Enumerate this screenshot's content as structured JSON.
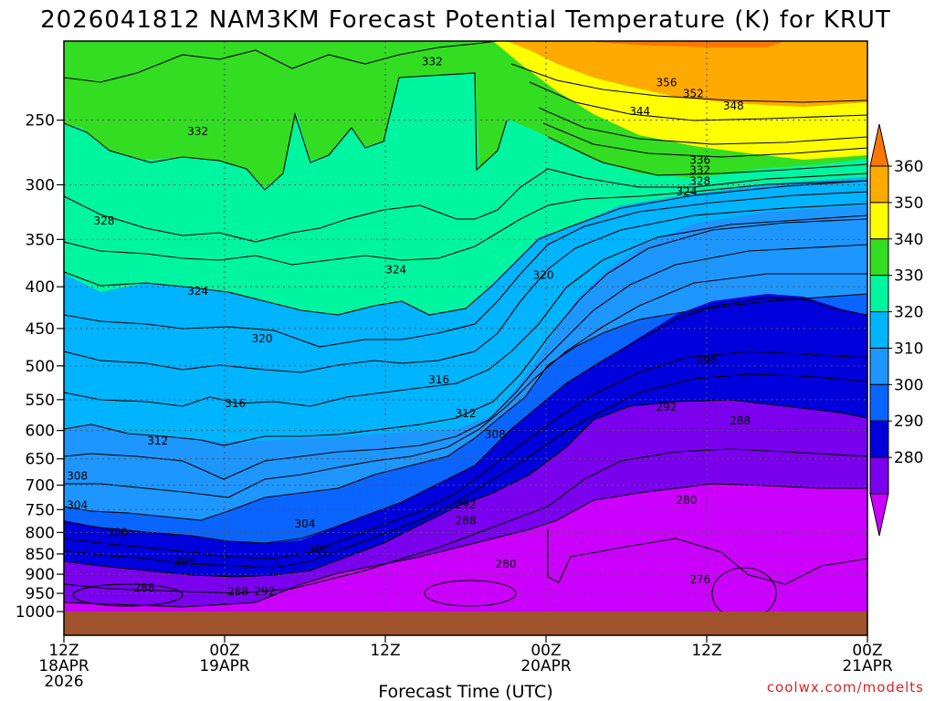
{
  "chart_data": {
    "type": "contour",
    "title": "2026041812 NAM3KM Forecast Potential Temperature (K) for KRUT",
    "xlabel": "Forecast Time (UTC)",
    "ylabel": "",
    "credit": "coolwx.com/modelts",
    "y_log_scale": true,
    "ylim": [
      1000,
      200
    ],
    "xlim": [
      0,
      60
    ],
    "grid": true,
    "colorbar": {
      "orientation": "vertical",
      "placement": "right",
      "levels": [
        280,
        290,
        300,
        310,
        320,
        330,
        340,
        350,
        360
      ],
      "labels": [
        "360",
        "350",
        "340",
        "330",
        "320",
        "310",
        "300",
        "290",
        "280"
      ],
      "colors": [
        "#cc00ff",
        "#7a00ee",
        "#0000dd",
        "#0a64ff",
        "#1e96ff",
        "#00b4ff",
        "#00f5a0",
        "#33dd22",
        "#ffff00",
        "#ffaa00",
        "#ff7700"
      ]
    },
    "y_ticks": [
      {
        "p": 250,
        "label": "250"
      },
      {
        "p": 300,
        "label": "300"
      },
      {
        "p": 350,
        "label": "350"
      },
      {
        "p": 400,
        "label": "400"
      },
      {
        "p": 450,
        "label": "450"
      },
      {
        "p": 500,
        "label": "500"
      },
      {
        "p": 550,
        "label": "550"
      },
      {
        "p": 600,
        "label": "600"
      },
      {
        "p": 650,
        "label": "650"
      },
      {
        "p": 700,
        "label": "700"
      },
      {
        "p": 750,
        "label": "750"
      },
      {
        "p": 800,
        "label": "800"
      },
      {
        "p": 850,
        "label": "850"
      },
      {
        "p": 900,
        "label": "900"
      },
      {
        "p": 950,
        "label": "950"
      },
      {
        "p": 1000,
        "label": "1000"
      }
    ],
    "x_ticks": [
      {
        "h": 0,
        "lines": [
          "12Z",
          "18APR",
          "2026"
        ]
      },
      {
        "h": 12,
        "lines": [
          "00Z",
          "19APR"
        ]
      },
      {
        "h": 24,
        "lines": [
          "12Z"
        ]
      },
      {
        "h": 36,
        "lines": [
          "00Z",
          "20APR"
        ]
      },
      {
        "h": 48,
        "lines": [
          "12Z"
        ]
      },
      {
        "h": 60,
        "lines": [
          "00Z",
          "21APR"
        ]
      }
    ],
    "contour_labels": [
      {
        "value": "332",
        "h": 27.5,
        "p": 212
      },
      {
        "value": "356",
        "h": 45,
        "p": 225
      },
      {
        "value": "352",
        "h": 47,
        "p": 232
      },
      {
        "value": "344",
        "h": 43,
        "p": 244
      },
      {
        "value": "348",
        "h": 50,
        "p": 240
      },
      {
        "value": "332",
        "h": 10,
        "p": 258
      },
      {
        "value": "336",
        "h": 47.5,
        "p": 280
      },
      {
        "value": "332",
        "h": 47.5,
        "p": 288
      },
      {
        "value": "328",
        "h": 47.5,
        "p": 297
      },
      {
        "value": "324",
        "h": 46.5,
        "p": 306
      },
      {
        "value": "328",
        "h": 3,
        "p": 332
      },
      {
        "value": "324",
        "h": 24.8,
        "p": 381
      },
      {
        "value": "320",
        "h": 35.8,
        "p": 387
      },
      {
        "value": "324",
        "h": 10,
        "p": 405
      },
      {
        "value": "320",
        "h": 14.8,
        "p": 463
      },
      {
        "value": "316",
        "h": 28,
        "p": 520
      },
      {
        "value": "296",
        "h": 48,
        "p": 492
      },
      {
        "value": "316",
        "h": 12.8,
        "p": 556
      },
      {
        "value": "292",
        "h": 45,
        "p": 562
      },
      {
        "value": "312",
        "h": 30,
        "p": 572
      },
      {
        "value": "288",
        "h": 50.5,
        "p": 584
      },
      {
        "value": "308",
        "h": 32.2,
        "p": 607
      },
      {
        "value": "312",
        "h": 7,
        "p": 618
      },
      {
        "value": "308",
        "h": 1,
        "p": 682
      },
      {
        "value": "280",
        "h": 46.5,
        "p": 730
      },
      {
        "value": "292",
        "h": 30,
        "p": 740
      },
      {
        "value": "304",
        "h": 1,
        "p": 741
      },
      {
        "value": "288",
        "h": 30,
        "p": 774
      },
      {
        "value": "304",
        "h": 18,
        "p": 781
      },
      {
        "value": "300",
        "h": 4,
        "p": 800
      },
      {
        "value": "300",
        "h": 19,
        "p": 839
      },
      {
        "value": "296",
        "h": 9,
        "p": 868
      },
      {
        "value": "280",
        "h": 33,
        "p": 875
      },
      {
        "value": "276",
        "h": 47.5,
        "p": 914
      },
      {
        "value": "288",
        "h": 6,
        "p": 935
      },
      {
        "value": "288",
        "h": 13,
        "p": 945
      },
      {
        "value": "292",
        "h": 15,
        "p": 945
      }
    ]
  }
}
